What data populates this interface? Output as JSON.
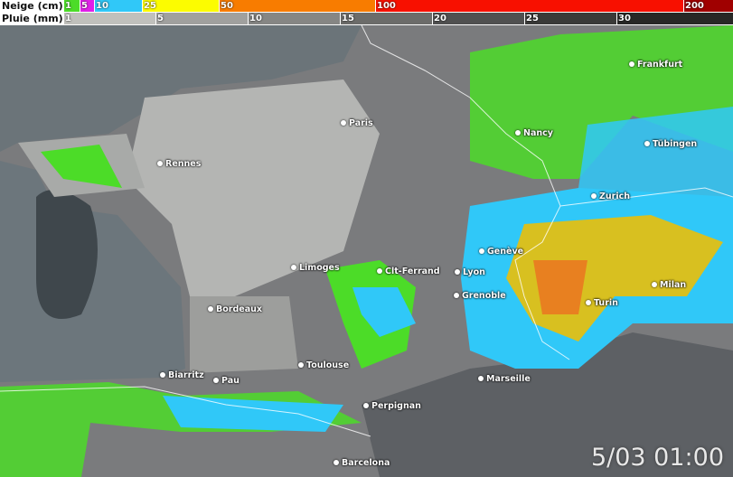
{
  "legend": {
    "snow": {
      "label": "Neige (cm)",
      "steps": [
        {
          "value": "1",
          "color": "#4cdc28"
        },
        {
          "value": "5",
          "color": "#e020e8"
        },
        {
          "value": "10",
          "color": "#30c8f8"
        },
        {
          "value": "25",
          "color": "#fcfc00"
        },
        {
          "value": "50",
          "color": "#f87c00"
        },
        {
          "value": "100",
          "color": "#f81000"
        },
        {
          "value": "200",
          "color": "#a00000"
        }
      ]
    },
    "rain": {
      "label": "Pluie (mm)",
      "steps": [
        {
          "value": "1",
          "color": "#c0c0bc"
        },
        {
          "value": "5",
          "color": "#a0a09e"
        },
        {
          "value": "10",
          "color": "#868684"
        },
        {
          "value": "15",
          "color": "#6c6c6a"
        },
        {
          "value": "20",
          "color": "#505050"
        },
        {
          "value": "25",
          "color": "#3a3a38"
        },
        {
          "value": "30",
          "color": "#282826"
        }
      ]
    }
  },
  "cities": [
    "Frankfurt",
    "Paris",
    "Nancy",
    "Tübingen",
    "Rennes",
    "Zurich",
    "Genève",
    "Limoges",
    "Clt-Ferrand",
    "Lyon",
    "Grenoble",
    "Milan",
    "Turin",
    "Bordeaux",
    "Biarritz",
    "Pau",
    "Toulouse",
    "Marseille",
    "Perpignan",
    "Barcelona"
  ],
  "timestamp": "5/03 01:00"
}
